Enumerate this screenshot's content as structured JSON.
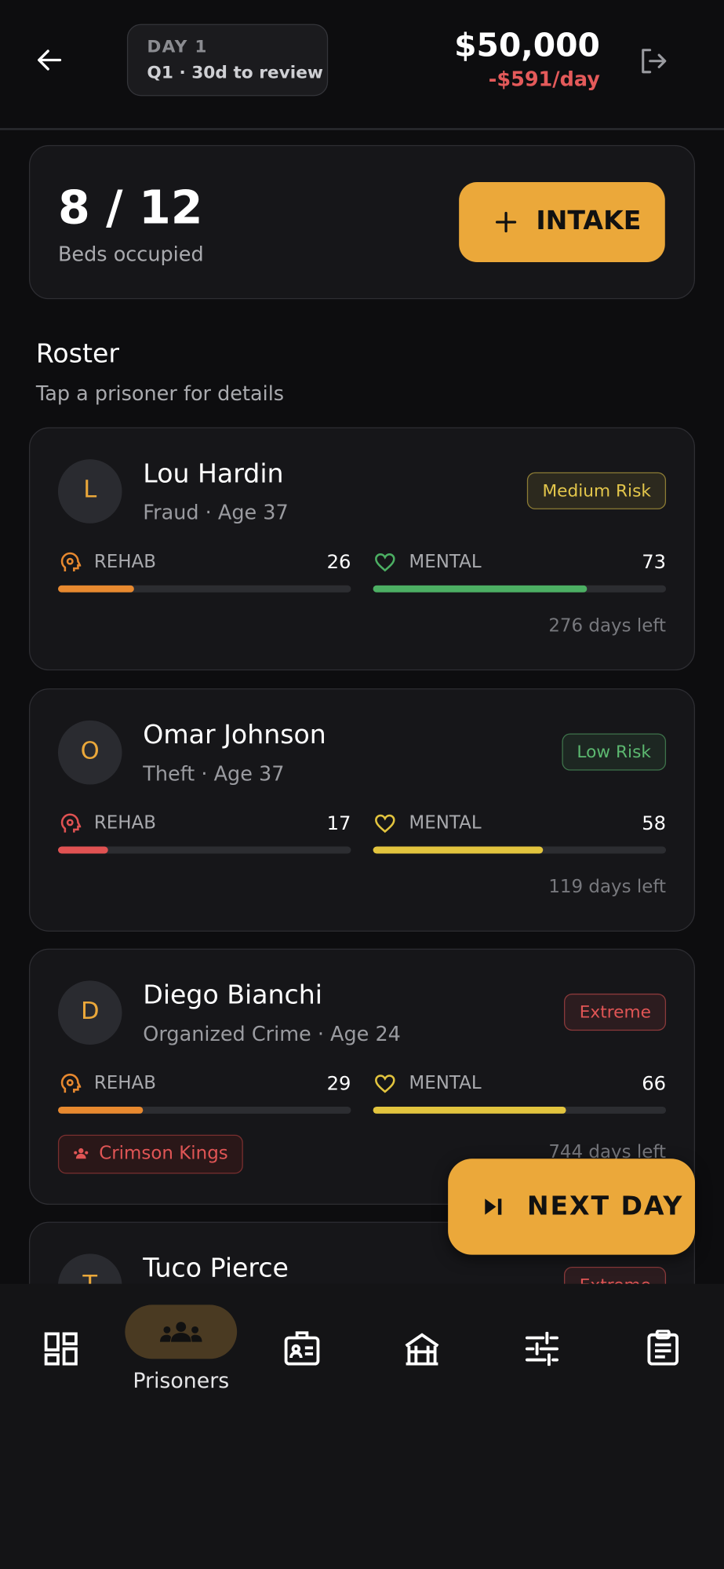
{
  "header": {
    "day": "DAY 1",
    "review": "Q1 · 30d to review",
    "balance": "$50,000",
    "daily_cost": "-$591/day"
  },
  "beds": {
    "occupancy": "8 / 12",
    "label": "Beds occupied",
    "button": "INTAKE"
  },
  "roster": {
    "title": "Roster",
    "subtitle": "Tap a prisoner for details",
    "xlim": [
      0,
      100
    ],
    "stat_labels": {
      "rehab": "REHAB",
      "mental": "MENTAL"
    },
    "prisoners": [
      {
        "initial": "L",
        "name": "Lou Hardin",
        "details": "Fraud · Age 37",
        "risk": "Medium Risk",
        "risk_color": "#e3c64b",
        "rehab": 26,
        "rehab_color": "#e8892f",
        "mental": 73,
        "mental_color": "#4caf63",
        "days_left": "276 days left"
      },
      {
        "initial": "O",
        "name": "Omar Johnson",
        "details": "Theft · Age 37",
        "risk": "Low Risk",
        "risk_color": "#5cb870",
        "rehab": 17,
        "rehab_color": "#e05252",
        "mental": 58,
        "mental_color": "#e2c43e",
        "days_left": "119 days left"
      },
      {
        "initial": "D",
        "name": "Diego Bianchi",
        "details": "Organized Crime · Age 24",
        "risk": "Extreme",
        "risk_color": "#e05555",
        "rehab": 29,
        "rehab_color": "#e8892f",
        "mental": 66,
        "mental_color": "#e2c43e",
        "gang": "Crimson Kings",
        "days_left": "744 days left"
      },
      {
        "initial": "T",
        "name": "Tuco Pierce",
        "risk": "Extreme",
        "risk_color": "#e05555"
      }
    ]
  },
  "next_day_button": "NEXT DAY",
  "nav": {
    "active_label": "Prisoners"
  }
}
